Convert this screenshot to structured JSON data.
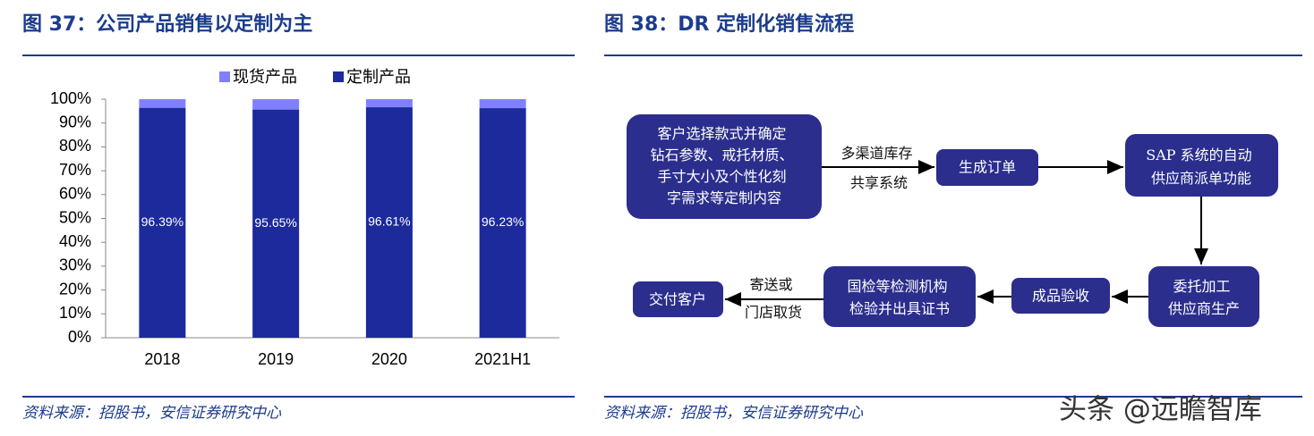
{
  "left": {
    "title": "图 37：公司产品销售以定制为主",
    "source": "资料来源：招股书，安信证券研究中心"
  },
  "chart_data": {
    "type": "bar",
    "stacked": true,
    "categories": [
      "2018",
      "2019",
      "2020",
      "2021H1"
    ],
    "series": [
      {
        "name": "现货产品",
        "color": "#8080ff",
        "values": [
          3.61,
          4.35,
          3.39,
          3.77
        ]
      },
      {
        "name": "定制产品",
        "color": "#1c2a9c",
        "values": [
          96.39,
          95.65,
          96.61,
          96.23
        ],
        "value_labels": [
          "96.39%",
          "95.65%",
          "96.61%",
          "96.23%"
        ]
      }
    ],
    "ylim": [
      0,
      100
    ],
    "yticks": [
      {
        "value": 0,
        "label": "0%"
      },
      {
        "value": 10,
        "label": "10%"
      },
      {
        "value": 20,
        "label": "20%"
      },
      {
        "value": 30,
        "label": "30%"
      },
      {
        "value": 40,
        "label": "40%"
      },
      {
        "value": 50,
        "label": "50%"
      },
      {
        "value": 60,
        "label": "60%"
      },
      {
        "value": 70,
        "label": "70%"
      },
      {
        "value": 80,
        "label": "80%"
      },
      {
        "value": 90,
        "label": "90%"
      },
      {
        "value": 100,
        "label": "100%"
      }
    ],
    "legend": "top"
  },
  "right": {
    "title": "图 38：DR 定制化销售流程",
    "source": "资料来源：招股书，安信证券研究中心"
  },
  "diagram": {
    "nodes": [
      {
        "lines": [
          "客户选择款式并确定",
          "钻石参数、戒托材质、",
          "手寸大小及个性化刻",
          "字需求等定制内容"
        ]
      },
      {
        "lines": [
          "生成订单"
        ]
      },
      {
        "lines": [
          "SAP 系统的自动",
          "供应商派单功能"
        ]
      },
      {
        "lines": [
          "委托加工",
          "供应商生产"
        ]
      },
      {
        "lines": [
          "成品验收"
        ]
      },
      {
        "lines": [
          "国检等检测机构",
          "检验并出具证书"
        ]
      },
      {
        "lines": [
          "交付客户"
        ]
      }
    ],
    "edge_labels": [
      [
        "多渠道库存",
        "共享系统"
      ],
      [
        "寄送或",
        "门店取货"
      ]
    ]
  },
  "watermark": "头条 @远瞻智库"
}
